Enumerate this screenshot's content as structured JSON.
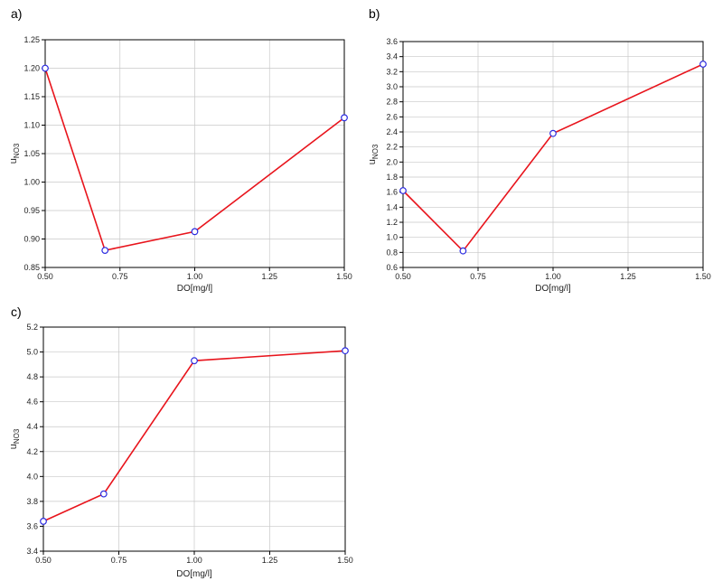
{
  "colors": {
    "line": "#e8141c",
    "marker": "#2b2be0",
    "grid": "#c8c8c8",
    "frame": "#000000"
  },
  "chart_data": [
    {
      "type": "line",
      "panel_label": "a)",
      "xlabel": "DO[mg/l]",
      "ylabel_main": "u",
      "ylabel_sub": "NO3",
      "x": [
        0.5,
        0.7,
        1.0,
        1.5
      ],
      "y": [
        1.2,
        0.88,
        0.913,
        1.113
      ],
      "xlim": [
        0.5,
        1.5
      ],
      "ylim": [
        0.85,
        1.25
      ],
      "xticks": [
        "0.50",
        "0.75",
        "1.00",
        "1.25",
        "1.50"
      ],
      "yticks": [
        "0.85",
        "0.90",
        "0.95",
        "1.00",
        "1.05",
        "1.10",
        "1.15",
        "1.20",
        "1.25"
      ],
      "grid": true
    },
    {
      "type": "line",
      "panel_label": "b)",
      "xlabel": "DO[mg/l]",
      "ylabel_main": "u",
      "ylabel_sub": "NO3",
      "x": [
        0.5,
        0.7,
        1.0,
        1.5
      ],
      "y": [
        1.62,
        0.82,
        2.38,
        3.3
      ],
      "xlim": [
        0.5,
        1.5
      ],
      "ylim": [
        0.6,
        3.6
      ],
      "xticks": [
        "0.50",
        "0.75",
        "1.00",
        "1.25",
        "1.50"
      ],
      "yticks": [
        "0.6",
        "0.8",
        "1.0",
        "1.2",
        "1.4",
        "1.6",
        "1.8",
        "2.0",
        "2.2",
        "2.4",
        "2.6",
        "2.8",
        "3.0",
        "3.2",
        "3.4",
        "3.6"
      ],
      "grid": true
    },
    {
      "type": "line",
      "panel_label": "c)",
      "xlabel": "DO[mg/l]",
      "ylabel_main": "u",
      "ylabel_sub": "NO3",
      "x": [
        0.5,
        0.7,
        1.0,
        1.5
      ],
      "y": [
        3.64,
        3.86,
        4.93,
        5.01
      ],
      "xlim": [
        0.5,
        1.5
      ],
      "ylim": [
        3.4,
        5.2
      ],
      "xticks": [
        "0.50",
        "0.75",
        "1.00",
        "1.25",
        "1.50"
      ],
      "yticks": [
        "3.4",
        "3.6",
        "3.8",
        "4.0",
        "4.2",
        "4.4",
        "4.6",
        "4.8",
        "5.0",
        "5.2"
      ],
      "grid": true
    }
  ]
}
